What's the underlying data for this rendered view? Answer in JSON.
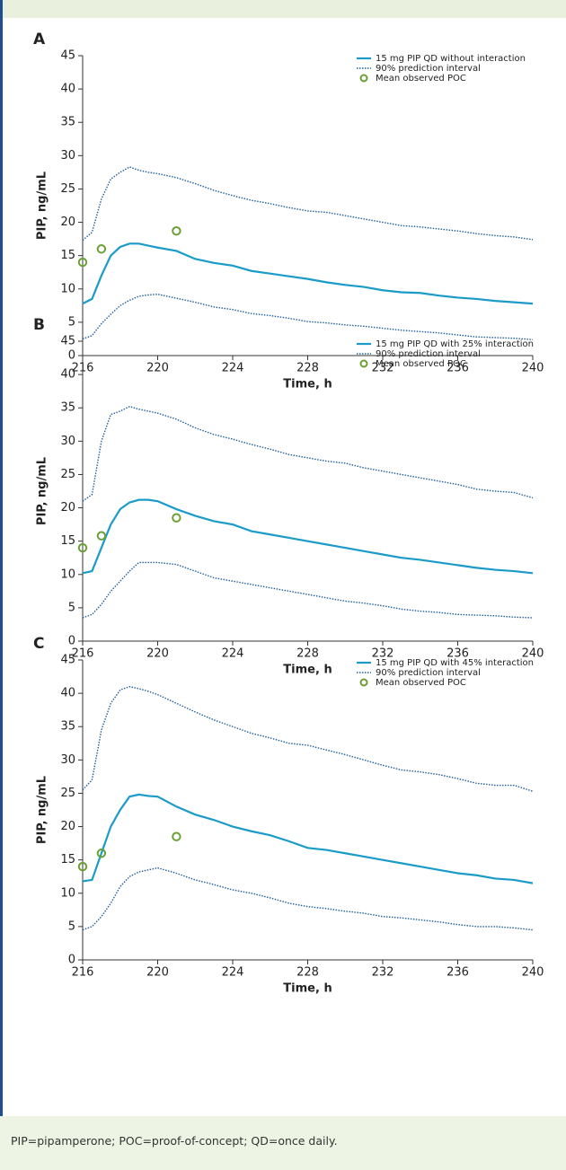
{
  "chart_data": [
    {
      "type": "line",
      "panel_label": "A",
      "ylabel": "PIP, ng/mL",
      "xlabel": "Time, h",
      "xlim": [
        216,
        240
      ],
      "ylim": [
        0,
        45
      ],
      "xticks": [
        216,
        220,
        224,
        228,
        232,
        236,
        240
      ],
      "yticks": [
        0,
        5,
        10,
        15,
        20,
        25,
        30,
        35,
        40,
        45
      ],
      "x": [
        216,
        216.5,
        217,
        217.5,
        218,
        218.5,
        219,
        219.5,
        220,
        221,
        222,
        223,
        224,
        225,
        226,
        227,
        228,
        229,
        230,
        231,
        232,
        233,
        234,
        235,
        236,
        237,
        238,
        239,
        240
      ],
      "series": [
        {
          "name": "15 mg PIP QD without interaction",
          "color": "#1a9bc8",
          "style": "solid",
          "values": [
            7.8,
            8.5,
            12,
            15,
            16.3,
            16.8,
            16.8,
            16.5,
            16.2,
            15.7,
            14.5,
            13.9,
            13.5,
            12.7,
            12.3,
            11.9,
            11.5,
            11,
            10.6,
            10.3,
            9.8,
            9.5,
            9.4,
            9,
            8.7,
            8.5,
            8.2,
            8,
            7.8
          ]
        },
        {
          "name": "90% prediction interval",
          "color": "#1f5f9e",
          "style": "dotted",
          "upper": [
            17.3,
            18.5,
            23.5,
            26.5,
            27.5,
            28.3,
            27.8,
            27.5,
            27.3,
            26.7,
            25.8,
            24.8,
            24,
            23.3,
            22.8,
            22.2,
            21.7,
            21.5,
            21,
            20.5,
            20,
            19.5,
            19.3,
            19,
            18.7,
            18.3,
            18,
            17.8,
            17.4
          ],
          "lower": [
            2.5,
            3,
            4.8,
            6.2,
            7.5,
            8.3,
            8.9,
            9.1,
            9.2,
            8.6,
            8,
            7.3,
            6.9,
            6.3,
            6,
            5.6,
            5.1,
            4.9,
            4.6,
            4.4,
            4.1,
            3.8,
            3.6,
            3.4,
            3.1,
            2.8,
            2.7,
            2.6,
            2.4
          ]
        },
        {
          "name": "Mean observed POC",
          "color": "#6aa033",
          "style": "marker",
          "x": [
            216,
            217,
            221
          ],
          "values": [
            14,
            16,
            18.7
          ]
        }
      ]
    },
    {
      "type": "line",
      "panel_label": "B",
      "ylabel": "PIP, ng/mL",
      "xlabel": "Time, h",
      "xlim": [
        216,
        240
      ],
      "ylim": [
        0,
        45
      ],
      "xticks": [
        216,
        220,
        224,
        228,
        232,
        236,
        240
      ],
      "yticks": [
        0,
        5,
        10,
        15,
        20,
        25,
        30,
        35,
        40,
        45
      ],
      "x": [
        216,
        216.5,
        217,
        217.5,
        218,
        218.5,
        219,
        219.5,
        220,
        221,
        222,
        223,
        224,
        225,
        226,
        227,
        228,
        229,
        230,
        231,
        232,
        233,
        234,
        235,
        236,
        237,
        238,
        239,
        240
      ],
      "series": [
        {
          "name": "15 mg PIP QD with 25% interaction",
          "color": "#1a9bc8",
          "style": "solid",
          "values": [
            10.2,
            10.5,
            14,
            17.5,
            19.8,
            20.8,
            21.2,
            21.2,
            21,
            19.8,
            18.8,
            18,
            17.5,
            16.5,
            16,
            15.5,
            15,
            14.5,
            14,
            13.5,
            13,
            12.5,
            12.2,
            11.8,
            11.4,
            11,
            10.7,
            10.5,
            10.2
          ]
        },
        {
          "name": "90% prediction interval",
          "color": "#1f5f9e",
          "style": "dotted",
          "upper": [
            21,
            22,
            30,
            34,
            34.5,
            35.2,
            34.8,
            34.5,
            34.2,
            33.3,
            32,
            31,
            30.3,
            29.5,
            28.8,
            28,
            27.5,
            27,
            26.7,
            26,
            25.5,
            25,
            24.5,
            24,
            23.5,
            22.8,
            22.5,
            22.3,
            21.5
          ],
          "lower": [
            3.5,
            4,
            5.5,
            7.5,
            9,
            10.5,
            11.8,
            11.8,
            11.8,
            11.5,
            10.5,
            9.5,
            9,
            8.5,
            8,
            7.5,
            7,
            6.5,
            6,
            5.7,
            5.3,
            4.8,
            4.5,
            4.3,
            4,
            3.9,
            3.8,
            3.6,
            3.5
          ]
        },
        {
          "name": "Mean observed POC",
          "color": "#6aa033",
          "style": "marker",
          "x": [
            216,
            217,
            221
          ],
          "values": [
            14,
            15.8,
            18.5
          ]
        }
      ]
    },
    {
      "type": "line",
      "panel_label": "C",
      "ylabel": "PIP, ng/mL",
      "xlabel": "Time, h",
      "xlim": [
        216,
        240
      ],
      "ylim": [
        0,
        45
      ],
      "xticks": [
        216,
        220,
        224,
        228,
        232,
        236,
        240
      ],
      "yticks": [
        0,
        5,
        10,
        15,
        20,
        25,
        30,
        35,
        40,
        45
      ],
      "x": [
        216,
        216.5,
        217,
        217.5,
        218,
        218.5,
        219,
        219.5,
        220,
        221,
        222,
        223,
        224,
        225,
        226,
        227,
        228,
        229,
        230,
        231,
        232,
        233,
        234,
        235,
        236,
        237,
        238,
        239,
        240
      ],
      "series": [
        {
          "name": "15 mg PIP QD with 45% interaction",
          "color": "#1a9bc8",
          "style": "solid",
          "values": [
            11.8,
            12,
            16,
            20,
            22.5,
            24.5,
            24.8,
            24.6,
            24.5,
            23,
            21.8,
            21,
            20,
            19.3,
            18.7,
            17.8,
            16.8,
            16.5,
            16,
            15.5,
            15,
            14.5,
            14,
            13.5,
            13,
            12.7,
            12.2,
            12,
            11.5
          ]
        },
        {
          "name": "90% prediction interval",
          "color": "#1f5f9e",
          "style": "dotted",
          "upper": [
            25.5,
            27,
            34.5,
            38.5,
            40.5,
            41,
            40.7,
            40.3,
            39.8,
            38.5,
            37.2,
            36,
            35,
            34,
            33.3,
            32.5,
            32.2,
            31.5,
            30.8,
            30,
            29.2,
            28.5,
            28.2,
            27.8,
            27.2,
            26.5,
            26.2,
            26.2,
            25.3
          ],
          "lower": [
            4.5,
            5,
            6.5,
            8.5,
            11,
            12.5,
            13.2,
            13.5,
            13.8,
            13,
            12,
            11.3,
            10.5,
            10,
            9.3,
            8.5,
            8,
            7.7,
            7.3,
            7,
            6.5,
            6.3,
            6,
            5.7,
            5.3,
            5,
            5,
            4.8,
            4.5
          ]
        },
        {
          "name": "Mean observed POC",
          "color": "#6aa033",
          "style": "marker",
          "x": [
            216,
            217,
            221
          ],
          "values": [
            14,
            16,
            18.5
          ]
        }
      ]
    }
  ],
  "caption": "PIP=pipamperone; POC=proof-of-concept; QD=once daily."
}
